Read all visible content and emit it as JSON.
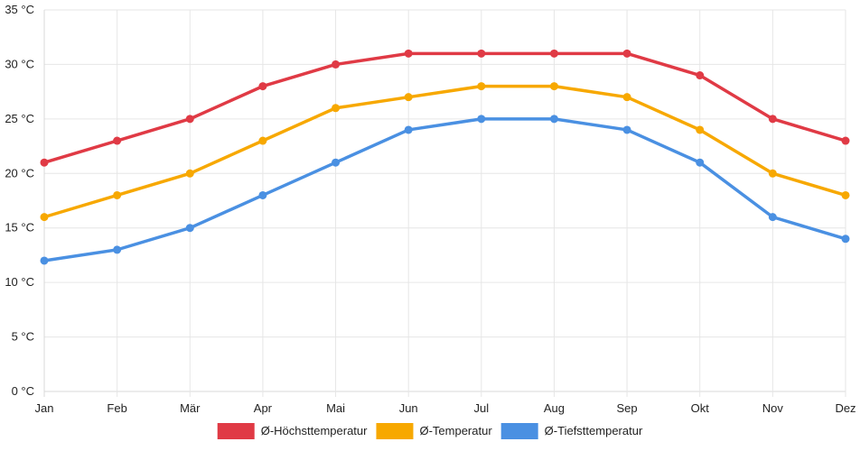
{
  "chart_data": {
    "type": "line",
    "title": "",
    "xlabel": "",
    "ylabel": "",
    "categories": [
      "Jan",
      "Feb",
      "Mär",
      "Apr",
      "Mai",
      "Jun",
      "Jul",
      "Aug",
      "Sep",
      "Okt",
      "Nov",
      "Dez"
    ],
    "ylim": [
      0,
      35
    ],
    "y_ticks": [
      0,
      5,
      10,
      15,
      20,
      25,
      30,
      35
    ],
    "y_tick_labels": [
      "0 °C",
      "5 °C",
      "10 °C",
      "15 °C",
      "20 °C",
      "25 °C",
      "30 °C",
      "35 °C"
    ],
    "grid": true,
    "legend_position": "bottom",
    "series": [
      {
        "name": "Ø-Höchsttemperatur",
        "color": "#e03a45",
        "values": [
          21,
          23,
          25,
          28,
          30,
          31,
          31,
          31,
          31,
          29,
          25,
          23
        ]
      },
      {
        "name": "Ø-Temperatur",
        "color": "#f7a800",
        "values": [
          16,
          18,
          20,
          23,
          26,
          27,
          28,
          28,
          27,
          24,
          20,
          18
        ]
      },
      {
        "name": "Ø-Tiefsttemperatur",
        "color": "#4a90e2",
        "values": [
          12,
          13,
          15,
          18,
          21,
          24,
          25,
          25,
          24,
          21,
          16,
          14
        ]
      }
    ]
  }
}
